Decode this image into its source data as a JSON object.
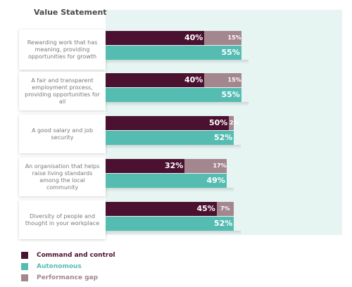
{
  "chart_data": {
    "type": "bar",
    "orientation": "horizontal",
    "stacked_top_series": true,
    "header": "Value Statement",
    "categories": [
      "Rewarding work that has meaning, providing opportunities for growth",
      "A fair and transparent employment process, providing opportunities for all",
      "A good salary and job security",
      "An organisation that helps raise living standards among the local community",
      "Diversity of people and thought in your workplace"
    ],
    "series": [
      {
        "name": "Command and control",
        "values": [
          40,
          40,
          50,
          32,
          45
        ],
        "labels": [
          "40%",
          "40%",
          "50%",
          "32%",
          "45%"
        ]
      },
      {
        "name": "Autonomous",
        "values": [
          55,
          55,
          52,
          49,
          52
        ],
        "labels": [
          "55%",
          "55%",
          "52%",
          "49%",
          "52%"
        ]
      },
      {
        "name": "Performance gap",
        "values": [
          15,
          15,
          2,
          17,
          7
        ],
        "labels": [
          "15%",
          "15%",
          "2%",
          "17%",
          "7%"
        ]
      }
    ],
    "colors": {
      "command": "#4b1130",
      "autonomous": "#55bcb2",
      "gap": "#a4868f",
      "autonomous_text": "#55bcb2",
      "gap_text": "#a4868f"
    },
    "legend_position": "bottom-left",
    "grid": false
  }
}
